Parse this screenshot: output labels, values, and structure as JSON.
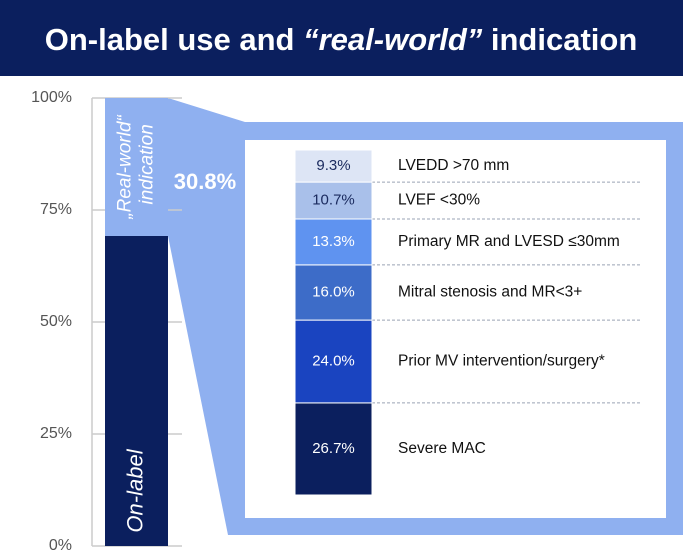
{
  "title_parts": [
    "On-label use and ",
    "“real-world”",
    " indication"
  ],
  "chart_data": [
    {
      "type": "stacked_bar",
      "ylim": [
        0,
        100
      ],
      "yticks": [
        {
          "value": 0,
          "label": "0%"
        },
        {
          "value": 25,
          "label": "25%"
        },
        {
          "value": 50,
          "label": "50%"
        },
        {
          "value": 75,
          "label": "75%"
        },
        {
          "value": 100,
          "label": "100%"
        }
      ],
      "grid": true,
      "series": [
        {
          "name": "On-label",
          "color": "#0b1f5e",
          "values": [
            69.2
          ]
        },
        {
          "name": "„Real-world“ indication",
          "color": "#8fb0f0",
          "values": [
            30.8
          ],
          "value_labels": [
            "30.8%"
          ]
        }
      ]
    },
    {
      "type": "stacked_bar",
      "ylim": [
        0,
        100
      ],
      "series": [
        {
          "name": "Severe MAC",
          "color": "#0b1f5e",
          "values": [
            26.7
          ],
          "value_labels": [
            "26.7%"
          ]
        },
        {
          "name": "Prior MV intervention/surgery*",
          "color": "#1a44c0",
          "values": [
            24.0
          ],
          "value_labels": [
            "24.0%"
          ]
        },
        {
          "name": "Mitral stenosis and MR<3+",
          "color": "#3d6cc8",
          "values": [
            16.0
          ],
          "value_labels": [
            "16.0%"
          ]
        },
        {
          "name": "Primary MR and LVESD ≤30mm",
          "color": "#5f93f0",
          "values": [
            13.3
          ],
          "value_labels": [
            "13.3%"
          ]
        },
        {
          "name": "LVEF <30%",
          "color": "#a9c0ea",
          "values": [
            10.7
          ],
          "value_labels": [
            "10.7%"
          ]
        },
        {
          "name": "LVEDD >70 mm",
          "color": "#dde5f5",
          "values": [
            9.3
          ],
          "value_labels": [
            "9.3%"
          ]
        }
      ]
    }
  ]
}
